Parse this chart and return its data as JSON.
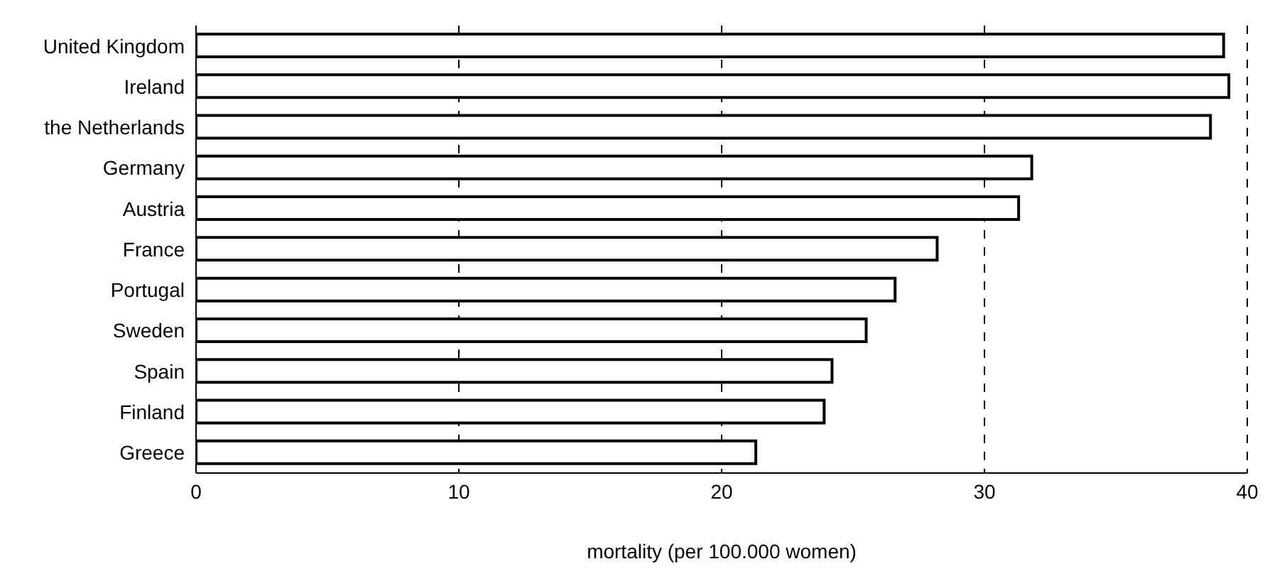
{
  "chart_data": {
    "type": "bar",
    "orientation": "horizontal",
    "xlabel": "mortality (per 100.000 women)",
    "categories": [
      "United Kingdom",
      "Ireland",
      "the Netherlands",
      "Germany",
      "Austria",
      "France",
      "Portugal",
      "Sweden",
      "Spain",
      "Finland",
      "Greece"
    ],
    "values": [
      39.1,
      39.3,
      38.6,
      31.8,
      31.3,
      28.2,
      26.6,
      25.5,
      24.2,
      23.9,
      21.3
    ],
    "color": "#ffffff",
    "xlim": [
      0,
      40
    ],
    "xticks": [
      0,
      10,
      20,
      30,
      40
    ],
    "grid": "x"
  }
}
